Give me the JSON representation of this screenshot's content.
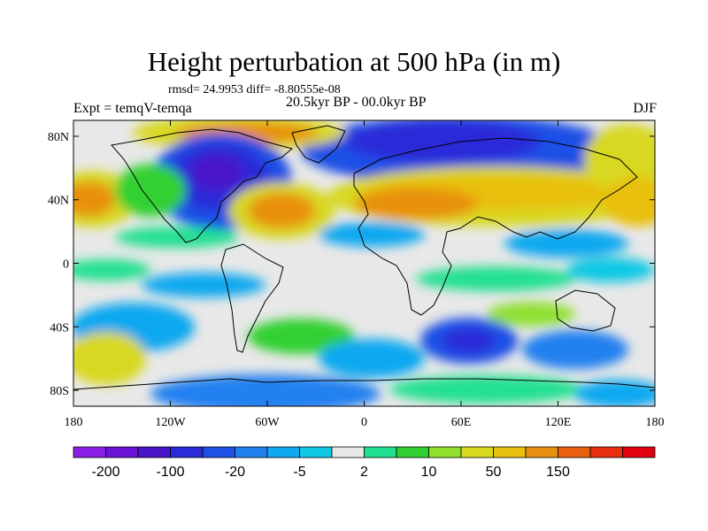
{
  "chart_data": {
    "type": "heatmap",
    "title": "Height perturbation at 500 hPa (in m)",
    "stats_text": "rmsd= 24.9953 diff= -8.80555e-08",
    "period_text": "20.5kyr BP - 00.0kyr BP",
    "experiment_text": "Expt = temqV-temqa",
    "season": "DJF",
    "x_ticks": [
      "180",
      "120W",
      "60W",
      "0",
      "60E",
      "120E",
      "180"
    ],
    "y_ticks": [
      "80N",
      "40N",
      "0",
      "40S",
      "80S"
    ],
    "lon_range": [
      -180,
      180
    ],
    "lat_range": [
      -90,
      90
    ],
    "colorbar_labels": [
      "-200",
      "-100",
      "-20",
      "-5",
      "2",
      "10",
      "50",
      "150"
    ],
    "colorbar_colors": [
      "#8a1ee6",
      "#6a12d6",
      "#4a14c8",
      "#2a2ad8",
      "#1e50e6",
      "#2080f0",
      "#10a8f0",
      "#10c8e4",
      "#e8e8e8",
      "#20e090",
      "#30d030",
      "#90e030",
      "#d8d820",
      "#e8c010",
      "#e89010",
      "#e86010",
      "#e83010",
      "#e00010"
    ]
  }
}
